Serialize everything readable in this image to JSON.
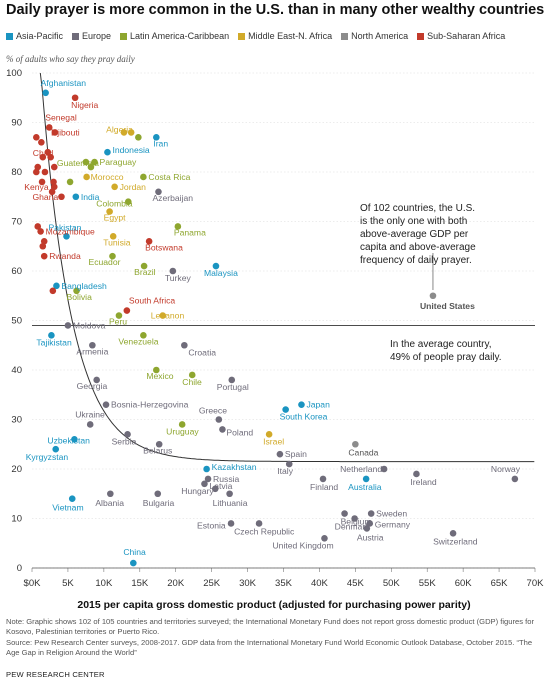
{
  "title": "Daily prayer is more common in the U.S. than in many other wealthy countries",
  "legend": [
    {
      "name": "Asia-Pacific",
      "color": "#1a94c1"
    },
    {
      "name": "Europe",
      "color": "#6f6c7a"
    },
    {
      "name": "Latin America-Caribbean",
      "color": "#8ea62f"
    },
    {
      "name": "Middle East-N. Africa",
      "color": "#d1aa2a"
    },
    {
      "name": "North America",
      "color": "#8c8c8c"
    },
    {
      "name": "Sub-Saharan Africa",
      "color": "#c23a2b"
    }
  ],
  "annotations": {
    "us_note": [
      "Of 102 countries, the U.S.",
      "is the only one with both",
      "above-average GDP per",
      "capita and above-average",
      "frequency of daily prayer."
    ],
    "avg_note": [
      "In the average country,",
      "49% of people pray daily."
    ]
  },
  "note": "Note: Graphic shows 102 of 105 countries and territories surveyed; the International Monetary Fund does not report gross domestic product (GDP) figures for Kosovo, Palestinian territories or Puerto Rico.",
  "source": "Source: Pew Research Center surveys, 2008-2017. GDP data from the International Monetary Fund World Economic Outlook Database, October 2015. “The Age Gap in Religion Around the World”",
  "brand": "PEW RESEARCH CENTER",
  "chart_data": {
    "type": "scatter",
    "title": "Daily prayer is more common in the U.S. than in many other wealthy countries",
    "xlabel": "2015 per capita gross domestic product (adjusted for purchasing power parity)",
    "ylabel": "% of adults who say they pray daily",
    "xlim": [
      0,
      70000
    ],
    "ylim": [
      0,
      100
    ],
    "xticks": [
      "$0K",
      "5K",
      "10K",
      "15K",
      "20K",
      "25K",
      "30K",
      "35K",
      "40K",
      "45K",
      "50K",
      "55K",
      "60K",
      "65K",
      "70K"
    ],
    "yticks": [
      "0",
      "10",
      "20",
      "30",
      "40",
      "50",
      "60",
      "70",
      "80",
      "90",
      "100"
    ],
    "average_line": 49,
    "trendline": "downward curve",
    "grid": true,
    "legend_position": "top",
    "points": [
      {
        "label": "Afghanistan",
        "region": "Asia-Pacific",
        "x": 1900,
        "y": 96
      },
      {
        "label": "Nigeria",
        "region": "Sub-Saharan Africa",
        "x": 6000,
        "y": 95
      },
      {
        "label": "Senegal",
        "region": "Sub-Saharan Africa",
        "x": 2400,
        "y": 89
      },
      {
        "label": "Djibouti",
        "region": "Sub-Saharan Africa",
        "x": 3200,
        "y": 88
      },
      {
        "label": "Chad",
        "region": "Sub-Saharan Africa",
        "x": 2200,
        "y": 84
      },
      {
        "label": "Algeria",
        "region": "Middle East-N. Africa",
        "x": 13800,
        "y": 88
      },
      {
        "label": "Iran",
        "region": "Asia-Pacific",
        "x": 17300,
        "y": 87
      },
      {
        "label": "Guatemala",
        "region": "Latin America-Caribbean",
        "x": 7500,
        "y": 82
      },
      {
        "label": "Indonesia",
        "region": "Asia-Pacific",
        "x": 10500,
        "y": 84
      },
      {
        "label": "Paraguay",
        "region": "Latin America-Caribbean",
        "x": 8700,
        "y": 82
      },
      {
        "label": "Morocco",
        "region": "Middle East-N. Africa",
        "x": 7600,
        "y": 79
      },
      {
        "label": "Costa Rica",
        "region": "Latin America-Caribbean",
        "x": 15500,
        "y": 79
      },
      {
        "label": "Kenya",
        "region": "Sub-Saharan Africa",
        "x": 3100,
        "y": 77
      },
      {
        "label": "Jordan",
        "region": "Middle East-N. Africa",
        "x": 11500,
        "y": 77
      },
      {
        "label": "Azerbaijan",
        "region": "Europe",
        "x": 17600,
        "y": 76
      },
      {
        "label": "Ghana",
        "region": "Sub-Saharan Africa",
        "x": 4100,
        "y": 75
      },
      {
        "label": "India",
        "region": "Asia-Pacific",
        "x": 6100,
        "y": 75
      },
      {
        "label": "Colombia",
        "region": "Latin America-Caribbean",
        "x": 13400,
        "y": 74
      },
      {
        "label": "Egypt",
        "region": "Middle East-N. Africa",
        "x": 10800,
        "y": 72
      },
      {
        "label": "Mozambique",
        "region": "Sub-Saharan Africa",
        "x": 1200,
        "y": 68
      },
      {
        "label": "Panama",
        "region": "Latin America-Caribbean",
        "x": 20300,
        "y": 69
      },
      {
        "label": "Pakistan",
        "region": "Asia-Pacific",
        "x": 4800,
        "y": 67
      },
      {
        "label": "Tunisia",
        "region": "Middle East-N. Africa",
        "x": 11300,
        "y": 67
      },
      {
        "label": "Botswana",
        "region": "Sub-Saharan Africa",
        "x": 16300,
        "y": 66
      },
      {
        "label": "Rwanda",
        "region": "Sub-Saharan Africa",
        "x": 1700,
        "y": 63
      },
      {
        "label": "Ecuador",
        "region": "Latin America-Caribbean",
        "x": 11200,
        "y": 63
      },
      {
        "label": "Brazil",
        "region": "Latin America-Caribbean",
        "x": 15600,
        "y": 61
      },
      {
        "label": "Turkey",
        "region": "Europe",
        "x": 19600,
        "y": 60
      },
      {
        "label": "Malaysia",
        "region": "Asia-Pacific",
        "x": 25600,
        "y": 61
      },
      {
        "label": "Bangladesh",
        "region": "Asia-Pacific",
        "x": 3400,
        "y": 57
      },
      {
        "label": "Bolivia",
        "region": "Latin America-Caribbean",
        "x": 6200,
        "y": 56
      },
      {
        "label": "United States",
        "region": "North America",
        "x": 55800,
        "y": 55
      },
      {
        "label": "South Africa",
        "region": "Sub-Saharan Africa",
        "x": 13200,
        "y": 52
      },
      {
        "label": "Peru",
        "region": "Latin America-Caribbean",
        "x": 12100,
        "y": 51
      },
      {
        "label": "Lebanon",
        "region": "Middle East-N. Africa",
        "x": 18200,
        "y": 51
      },
      {
        "label": "Moldova",
        "region": "Europe",
        "x": 5000,
        "y": 49
      },
      {
        "label": "Tajikistan",
        "region": "Asia-Pacific",
        "x": 2700,
        "y": 47
      },
      {
        "label": "Venezuela",
        "region": "Latin America-Caribbean",
        "x": 15500,
        "y": 47
      },
      {
        "label": "Armenia",
        "region": "Europe",
        "x": 8400,
        "y": 45
      },
      {
        "label": "Croatia",
        "region": "Europe",
        "x": 21200,
        "y": 45
      },
      {
        "label": "Mexico",
        "region": "Latin America-Caribbean",
        "x": 17300,
        "y": 40
      },
      {
        "label": "Chile",
        "region": "Latin America-Caribbean",
        "x": 22300,
        "y": 39
      },
      {
        "label": "Georgia",
        "region": "Europe",
        "x": 9000,
        "y": 38
      },
      {
        "label": "Portugal",
        "region": "Europe",
        "x": 27800,
        "y": 38
      },
      {
        "label": "Bosnia-Herzegovina",
        "region": "Europe",
        "x": 10300,
        "y": 33
      },
      {
        "label": "Japan",
        "region": "Asia-Pacific",
        "x": 37500,
        "y": 33
      },
      {
        "label": "South Korea",
        "region": "Asia-Pacific",
        "x": 35300,
        "y": 32
      },
      {
        "label": "Greece",
        "region": "Europe",
        "x": 26000,
        "y": 30
      },
      {
        "label": "Ukraine",
        "region": "Europe",
        "x": 8100,
        "y": 29
      },
      {
        "label": "Uruguay",
        "region": "Latin America-Caribbean",
        "x": 20900,
        "y": 29
      },
      {
        "label": "Poland",
        "region": "Europe",
        "x": 26500,
        "y": 28
      },
      {
        "label": "Israel",
        "region": "Middle East-N. Africa",
        "x": 33000,
        "y": 27
      },
      {
        "label": "Serbia",
        "region": "Europe",
        "x": 13300,
        "y": 27
      },
      {
        "label": "Uzbekistan",
        "region": "Asia-Pacific",
        "x": 5900,
        "y": 26
      },
      {
        "label": "Belarus",
        "region": "Europe",
        "x": 17700,
        "y": 25
      },
      {
        "label": "Canada",
        "region": "North America",
        "x": 45000,
        "y": 25
      },
      {
        "label": "Kyrgyzstan",
        "region": "Asia-Pacific",
        "x": 3300,
        "y": 24
      },
      {
        "label": "Spain",
        "region": "Europe",
        "x": 34500,
        "y": 23
      },
      {
        "label": "Italy",
        "region": "Europe",
        "x": 35800,
        "y": 21
      },
      {
        "label": "Kazakhstan",
        "region": "Asia-Pacific",
        "x": 24300,
        "y": 20
      },
      {
        "label": "Norway",
        "region": "Europe",
        "x": 67200,
        "y": 18
      },
      {
        "label": "Netherlands",
        "region": "Europe",
        "x": 49000,
        "y": 20
      },
      {
        "label": "Russia",
        "region": "Europe",
        "x": 24500,
        "y": 18
      },
      {
        "label": "Latvia",
        "region": "Europe",
        "x": 24000,
        "y": 17
      },
      {
        "label": "Finland",
        "region": "Europe",
        "x": 40500,
        "y": 18
      },
      {
        "label": "Ireland",
        "region": "Europe",
        "x": 53500,
        "y": 19
      },
      {
        "label": "Australia",
        "region": "Asia-Pacific",
        "x": 46500,
        "y": 18
      },
      {
        "label": "Hungary",
        "region": "Europe",
        "x": 25500,
        "y": 16
      },
      {
        "label": "Vietnam",
        "region": "Asia-Pacific",
        "x": 5600,
        "y": 14
      },
      {
        "label": "Albania",
        "region": "Europe",
        "x": 10900,
        "y": 15
      },
      {
        "label": "Bulgaria",
        "region": "Europe",
        "x": 17500,
        "y": 15
      },
      {
        "label": "Lithuania",
        "region": "Europe",
        "x": 27500,
        "y": 15
      },
      {
        "label": "Belgium",
        "region": "Europe",
        "x": 43500,
        "y": 11
      },
      {
        "label": "Sweden",
        "region": "Europe",
        "x": 47200,
        "y": 11
      },
      {
        "label": "Denmark",
        "region": "Europe",
        "x": 44900,
        "y": 10
      },
      {
        "label": "Germany",
        "region": "Europe",
        "x": 47000,
        "y": 9
      },
      {
        "label": "Austria",
        "region": "Europe",
        "x": 46600,
        "y": 8
      },
      {
        "label": "Estonia",
        "region": "Europe",
        "x": 27700,
        "y": 9
      },
      {
        "label": "Czech Republic",
        "region": "Europe",
        "x": 31600,
        "y": 9
      },
      {
        "label": "Switzerland",
        "region": "Europe",
        "x": 58600,
        "y": 7
      },
      {
        "label": "United Kingdom",
        "region": "Europe",
        "x": 40700,
        "y": 6
      },
      {
        "label": "China",
        "region": "Asia-Pacific",
        "x": 14100,
        "y": 1
      },
      {
        "label": "",
        "region": "Sub-Saharan Africa",
        "x": 600,
        "y": 87
      },
      {
        "label": "",
        "region": "Sub-Saharan Africa",
        "x": 1300,
        "y": 86
      },
      {
        "label": "",
        "region": "Sub-Saharan Africa",
        "x": 1500,
        "y": 83
      },
      {
        "label": "",
        "region": "Sub-Saharan Africa",
        "x": 800,
        "y": 81
      },
      {
        "label": "",
        "region": "Sub-Saharan Africa",
        "x": 600,
        "y": 80
      },
      {
        "label": "",
        "region": "Sub-Saharan Africa",
        "x": 2600,
        "y": 83
      },
      {
        "label": "",
        "region": "Sub-Saharan Africa",
        "x": 3100,
        "y": 81
      },
      {
        "label": "",
        "region": "Sub-Saharan Africa",
        "x": 1800,
        "y": 80
      },
      {
        "label": "",
        "region": "Sub-Saharan Africa",
        "x": 1400,
        "y": 78
      },
      {
        "label": "",
        "region": "Sub-Saharan Africa",
        "x": 3000,
        "y": 78
      },
      {
        "label": "",
        "region": "Sub-Saharan Africa",
        "x": 2800,
        "y": 76
      },
      {
        "label": "",
        "region": "Sub-Saharan Africa",
        "x": 800,
        "y": 69
      },
      {
        "label": "",
        "region": "Sub-Saharan Africa",
        "x": 1700,
        "y": 66
      },
      {
        "label": "",
        "region": "Sub-Saharan Africa",
        "x": 1500,
        "y": 65
      },
      {
        "label": "",
        "region": "Sub-Saharan Africa",
        "x": 2900,
        "y": 56
      },
      {
        "label": "",
        "region": "Latin America-Caribbean",
        "x": 5300,
        "y": 78
      },
      {
        "label": "",
        "region": "Latin America-Caribbean",
        "x": 8200,
        "y": 81
      },
      {
        "label": "",
        "region": "Middle East-N. Africa",
        "x": 12800,
        "y": 88
      },
      {
        "label": "",
        "region": "Latin America-Caribbean",
        "x": 14800,
        "y": 87
      }
    ]
  }
}
